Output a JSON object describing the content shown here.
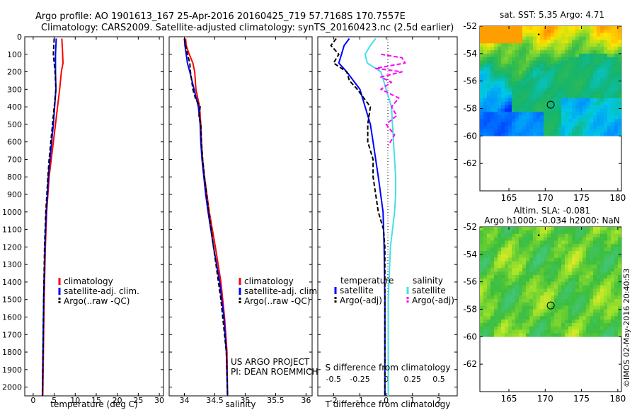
{
  "header": {
    "line1": "Argo profile: AO 1901613_167 25-Apr-2016 20160425_719 57.7168S 170.7557E",
    "line2": "Climatology: CARS2009. Satellite-adjusted climatology: synTS_20160423.nc (2.5d earlier)"
  },
  "colors": {
    "climatology": "#ff0000",
    "satellite": "#0000ff",
    "argo": "#000000",
    "sal_satellite": "#44e0e6",
    "sal_argo": "#ff00ff"
  },
  "chart_data": [
    {
      "type": "line",
      "id": "temperature",
      "xlabel": "temperature (deg C)",
      "ylabel": "",
      "xlim": [
        -2,
        31
      ],
      "ylim": [
        2050,
        0
      ],
      "xticks": [
        0,
        5,
        10,
        15,
        20,
        25,
        30
      ],
      "yticks": [
        0,
        100,
        200,
        300,
        400,
        500,
        600,
        700,
        800,
        900,
        1000,
        1100,
        1200,
        1300,
        1400,
        1500,
        1600,
        1700,
        1800,
        1900,
        2000
      ],
      "legend": [
        "climatology",
        "satellite-adj. clim.",
        "Argo(..raw -QC)"
      ],
      "series": [
        {
          "name": "climatology",
          "depth": [
            10,
            50,
            100,
            150,
            200,
            300,
            400,
            500,
            600,
            700,
            800,
            900,
            1000,
            1200,
            1500,
            2050
          ],
          "values": [
            6.8,
            6.9,
            7.0,
            7.1,
            6.7,
            6.3,
            5.8,
            5.3,
            4.8,
            4.3,
            3.8,
            3.5,
            3.2,
            2.9,
            2.6,
            2.3
          ]
        },
        {
          "name": "satellite-adj. clim.",
          "depth": [
            10,
            50,
            100,
            150,
            200,
            300,
            400,
            500,
            600,
            700,
            800,
            900,
            1000,
            1200,
            1500,
            2050
          ],
          "values": [
            5.5,
            5.4,
            5.3,
            5.3,
            5.3,
            5.4,
            5.1,
            4.8,
            4.4,
            4.0,
            3.6,
            3.4,
            3.1,
            2.8,
            2.5,
            2.2
          ]
        },
        {
          "name": "Argo(..raw -QC)",
          "depth": [
            10,
            50,
            100,
            150,
            200,
            300,
            400,
            500,
            600,
            700,
            800,
            1000,
            1200,
            1500,
            2050
          ],
          "values": [
            5.0,
            4.9,
            4.8,
            5.0,
            5.2,
            5.4,
            5.0,
            4.6,
            4.2,
            3.8,
            3.5,
            3.0,
            2.7,
            2.5,
            2.2
          ]
        }
      ]
    },
    {
      "type": "line",
      "id": "salinity",
      "xlabel": "salinity",
      "ylabel": "",
      "xlim": [
        33.75,
        36.1
      ],
      "ylim": [
        2050,
        0
      ],
      "xticks": [
        34,
        34.5,
        35,
        35.5,
        36
      ],
      "legend": [
        "climatology",
        "satellite-adj. clim.",
        "Argo(..raw -QC)"
      ],
      "annotation": [
        "US ARGO PROJECT",
        "PI: DEAN ROEMMICH"
      ],
      "series": [
        {
          "name": "climatology",
          "depth": [
            10,
            50,
            100,
            150,
            200,
            300,
            400,
            500,
            600,
            700,
            800,
            900,
            1000,
            1200,
            1400,
            1600,
            1800,
            2050
          ],
          "values": [
            34.02,
            34.03,
            34.08,
            34.14,
            34.17,
            34.19,
            34.25,
            34.27,
            34.28,
            34.3,
            34.33,
            34.37,
            34.41,
            34.51,
            34.6,
            34.66,
            34.7,
            34.71
          ]
        },
        {
          "name": "satellite-adj. clim.",
          "depth": [
            10,
            50,
            100,
            150,
            200,
            300,
            400,
            500,
            600,
            700,
            800,
            900,
            1000,
            1200,
            1400,
            1600,
            1800,
            2050
          ],
          "values": [
            34.0,
            34.01,
            34.03,
            34.05,
            34.09,
            34.16,
            34.23,
            34.26,
            34.27,
            34.29,
            34.32,
            34.35,
            34.39,
            34.48,
            34.58,
            34.65,
            34.69,
            34.71
          ]
        },
        {
          "name": "Argo(..raw -QC)",
          "depth": [
            10,
            50,
            100,
            150,
            200,
            250,
            300,
            350,
            400,
            450,
            500,
            600,
            700,
            800,
            1000,
            1200,
            1500,
            1800,
            2050
          ],
          "values": [
            34.0,
            34.02,
            34.05,
            34.09,
            34.1,
            34.12,
            34.14,
            34.18,
            34.26,
            34.24,
            34.27,
            34.28,
            34.3,
            34.33,
            34.4,
            34.48,
            34.6,
            34.69,
            34.71
          ]
        }
      ]
    },
    {
      "type": "line",
      "id": "differences",
      "xlabel": "T difference from climatology",
      "xlabel_top": "S difference from climatology",
      "xlim": [
        -2.6,
        2.7
      ],
      "ylim": [
        2050,
        0
      ],
      "xticks": [
        -2,
        -1,
        0,
        1,
        2
      ],
      "sticks": [
        -0.5,
        -0.25,
        0,
        0.25,
        0.5
      ],
      "legend_temperature": {
        "title": "temperature",
        "items": [
          "satellite",
          "Argo(-adj)"
        ]
      },
      "legend_salinity": {
        "title": "salinity",
        "items": [
          "satellite",
          "Argo(-adj)"
        ]
      },
      "series": [
        {
          "name": "satellite",
          "group": "temperature",
          "depth": [
            10,
            50,
            100,
            150,
            200,
            300,
            400,
            500,
            600,
            700,
            800,
            1000,
            1200,
            1500,
            2050
          ],
          "values": [
            -1.4,
            -1.6,
            -1.7,
            -1.8,
            -1.5,
            -1.0,
            -0.8,
            -0.6,
            -0.5,
            -0.4,
            -0.3,
            -0.12,
            -0.08,
            -0.05,
            -0.05
          ]
        },
        {
          "name": "Argo(-adj)",
          "group": "temperature",
          "depth": [
            10,
            50,
            100,
            150,
            200,
            250,
            300,
            400,
            500,
            600,
            700,
            800,
            900,
            1000,
            1100,
            1200,
            1500,
            2050
          ],
          "values": [
            -1.9,
            -2.1,
            -1.8,
            -2.0,
            -1.5,
            -1.4,
            -1.1,
            -0.6,
            -0.7,
            -0.7,
            -0.5,
            -0.5,
            -0.4,
            -0.3,
            -0.1,
            -0.05,
            -0.05,
            -0.05
          ]
        },
        {
          "name": "satellite",
          "group": "salinity",
          "depth": [
            10,
            50,
            100,
            150,
            200,
            300,
            400,
            500,
            600,
            700,
            800,
            900,
            1000,
            1100,
            1200,
            1500,
            2050
          ],
          "values": [
            -0.1,
            -0.15,
            -0.2,
            -0.18,
            -0.05,
            0.0,
            0.05,
            0.06,
            0.07,
            0.08,
            0.09,
            0.09,
            0.08,
            0.06,
            0.04,
            0.02,
            0.02
          ]
        },
        {
          "name": "Argo(-adj)",
          "group": "salinity",
          "depth": [
            100,
            120,
            150,
            180,
            200,
            230,
            260,
            300,
            350,
            400,
            450,
            500,
            560,
            620
          ],
          "values": [
            -0.05,
            0.15,
            0.18,
            -0.1,
            0.15,
            -0.05,
            0.05,
            -0.05,
            0.12,
            0.05,
            0.1,
            0.0,
            0.08,
            0.02
          ]
        }
      ]
    },
    {
      "type": "heatmap",
      "id": "sst-map",
      "title": "sat. SST: 5.35 Argo: 4.71",
      "xlim": [
        161,
        180.5
      ],
      "ylim": [
        -64,
        -52
      ],
      "xticks": [
        165,
        170,
        175,
        180
      ],
      "yticks": [
        -52,
        -54,
        -56,
        -58,
        -60,
        -62
      ],
      "marker": [
        170.76,
        -57.72
      ]
    },
    {
      "type": "heatmap",
      "id": "sla-map",
      "title": "Altim. SLA: -0.081",
      "subtitle": "Argo h1000: -0.034 h2000: NaN",
      "xlim": [
        161,
        180.5
      ],
      "ylim": [
        -64,
        -52
      ],
      "xticks": [
        165,
        170,
        175,
        180
      ],
      "yticks": [
        -52,
        -54,
        -56,
        -58,
        -60,
        -62
      ],
      "marker": [
        170.76,
        -57.72
      ]
    }
  ],
  "credit": "©IMOS 02-May-2016 20:40:53"
}
